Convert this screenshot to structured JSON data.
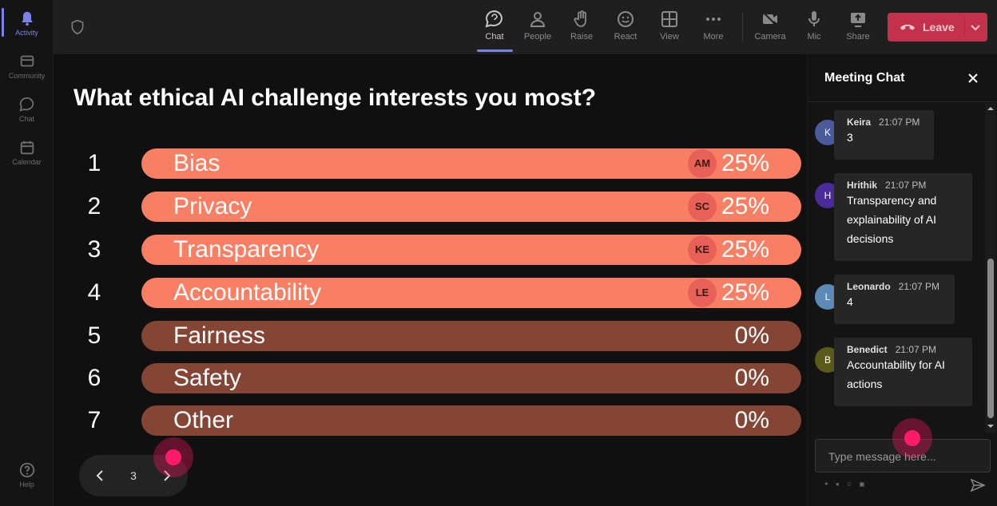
{
  "rail": {
    "items": [
      {
        "label": "Activity",
        "icon": "bell-icon",
        "active": true
      },
      {
        "label": "Community",
        "icon": "community-icon",
        "active": false
      },
      {
        "label": "Chat",
        "icon": "chat-bubble-icon",
        "active": false
      },
      {
        "label": "Calendar",
        "icon": "calendar-icon",
        "active": false
      }
    ],
    "help_label": "Help"
  },
  "toolbar": {
    "chat": "Chat",
    "people": "People",
    "raise": "Raise",
    "react": "React",
    "view": "View",
    "more": "More",
    "camera": "Camera",
    "mic": "Mic",
    "share": "Share",
    "leave": "Leave"
  },
  "poll": {
    "question": "What ethical AI challenge interests you most?",
    "options": [
      {
        "num": "1",
        "label": "Bias",
        "percent": "25%",
        "avatar": "AM"
      },
      {
        "num": "2",
        "label": "Privacy",
        "percent": "25%",
        "avatar": "SC"
      },
      {
        "num": "3",
        "label": "Transparency",
        "percent": "25%",
        "avatar": "KE"
      },
      {
        "num": "4",
        "label": "Accountability",
        "percent": "25%",
        "avatar": "LE"
      },
      {
        "num": "5",
        "label": "Fairness",
        "percent": "0%",
        "avatar": ""
      },
      {
        "num": "6",
        "label": "Safety",
        "percent": "0%",
        "avatar": ""
      },
      {
        "num": "7",
        "label": "Other",
        "percent": "0%",
        "avatar": ""
      }
    ],
    "page": "3"
  },
  "chat": {
    "title": "Meeting Chat",
    "messages": [
      {
        "initial": "K",
        "name": "Keira",
        "time": "21:07 PM",
        "text": "3",
        "color": "#4a5a9a"
      },
      {
        "initial": "H",
        "name": "Hrithik",
        "time": "21:07 PM",
        "text": "Transparency and explainability of AI decisions",
        "color": "#4b2a9a"
      },
      {
        "initial": "L",
        "name": "Leonardo",
        "time": "21:07 PM",
        "text": "4",
        "color": "#5a8ab5"
      },
      {
        "initial": "B",
        "name": "Benedict",
        "time": "21:07 PM",
        "text": "Accountability for AI actions",
        "color": "#5a5a1a"
      }
    ],
    "input_placeholder": "Type message here..."
  },
  "colors": {
    "accent": "#7b83eb",
    "bar_active": "#f87f63",
    "bar_inactive": "#854535",
    "leave": "#c4314b",
    "cursor": "#ff1a6a"
  }
}
